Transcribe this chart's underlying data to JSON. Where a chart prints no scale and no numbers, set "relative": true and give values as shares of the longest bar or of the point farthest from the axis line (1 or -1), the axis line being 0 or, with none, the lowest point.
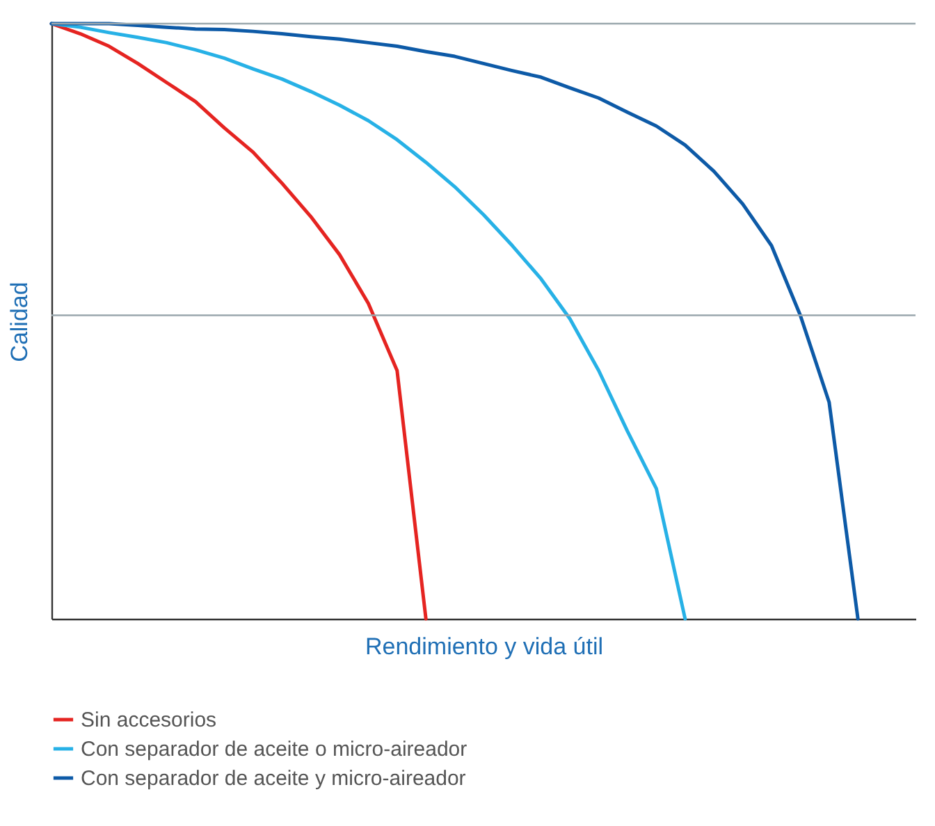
{
  "chart_data": {
    "type": "line",
    "relative": true,
    "xlabel": "Rendimiento y vida útil",
    "ylabel": "Calidad",
    "categories": [
      null,
      null,
      null,
      null,
      null,
      null,
      null,
      null,
      null,
      null,
      null,
      null,
      null,
      null,
      null,
      null,
      null,
      null,
      null,
      null,
      null,
      null,
      null,
      null,
      null,
      null,
      null,
      null,
      null,
      null,
      null
    ],
    "legend": "bottom",
    "line_style": "solid",
    "marker": "none",
    "ref_lines": [
      {
        "axis": "y",
        "value": 1,
        "color": "#9aa7ad"
      },
      {
        "axis": "y",
        "value": 0.51,
        "color": "#9aa7ad"
      }
    ],
    "series": [
      {
        "name": "Sin accesorios",
        "color": "#e52421",
        "values": [
          1,
          0.983,
          0.962,
          0.933,
          0.901,
          0.869,
          0.825,
          0.784,
          0.732,
          0.676,
          0.612,
          0.53,
          0.417,
          0,
          null,
          null,
          null,
          null,
          null,
          null,
          null,
          null,
          null,
          null,
          null,
          null,
          null,
          null,
          null,
          null,
          null
        ]
      },
      {
        "name": "Con separador de aceite o micro-aireador",
        "color": "#27b1e6",
        "values": [
          1,
          0.994,
          0.985,
          0.977,
          0.968,
          0.956,
          0.942,
          0.924,
          0.907,
          0.886,
          0.863,
          0.837,
          0.805,
          0.767,
          0.726,
          0.679,
          0.627,
          0.571,
          0.504,
          0.417,
          0.315,
          0.219,
          0,
          null,
          null,
          null,
          null,
          null,
          null,
          null,
          null
        ]
      },
      {
        "name": "Con separador de aceite y micro-aireador",
        "color": "#0d5aa7",
        "values": [
          1,
          1,
          1,
          0.997,
          0.994,
          0.991,
          0.99,
          0.987,
          0.983,
          0.978,
          0.974,
          0.968,
          0.962,
          0.953,
          0.945,
          0.933,
          0.921,
          0.91,
          0.892,
          0.875,
          0.851,
          0.828,
          0.796,
          0.752,
          0.697,
          0.627,
          0.51,
          0.364,
          0,
          null,
          null
        ]
      }
    ]
  }
}
